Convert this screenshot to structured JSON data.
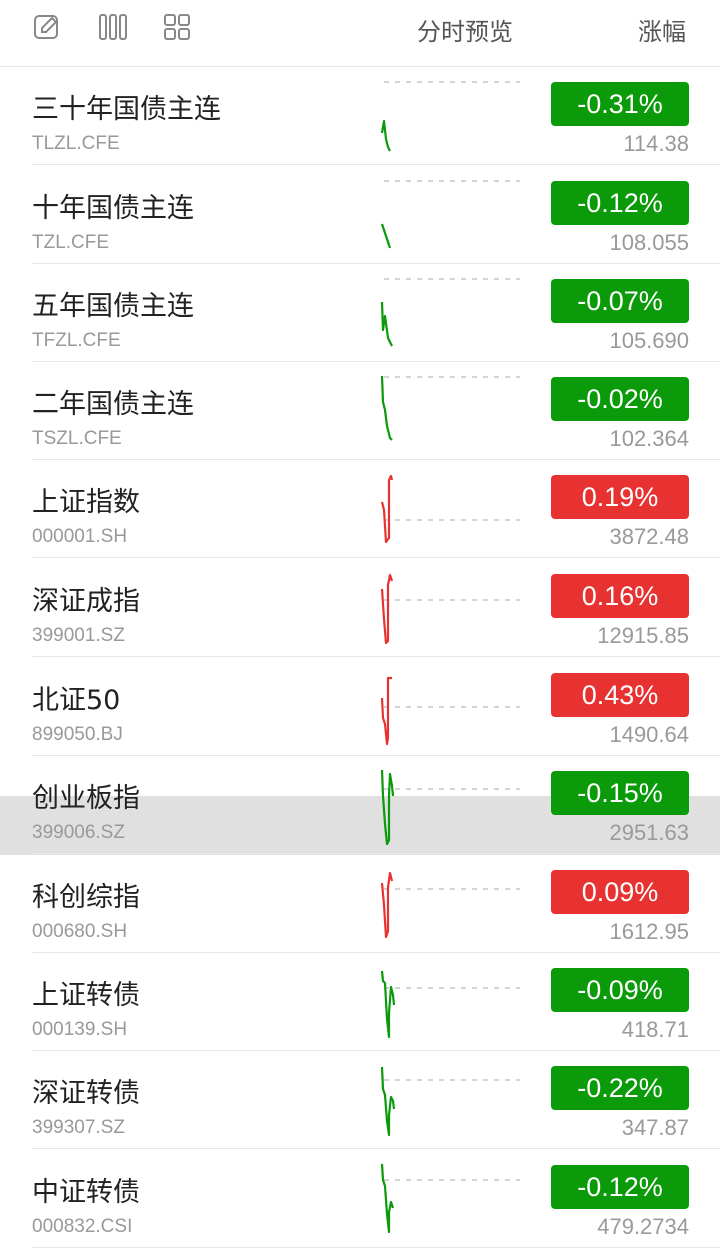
{
  "header": {
    "icons": [
      "edit-icon",
      "columns-icon",
      "grid-icon"
    ],
    "preview_label": "分时预览",
    "change_label": "涨幅"
  },
  "colors": {
    "up": "#e83232",
    "down": "#0a9a0a"
  },
  "rows": [
    {
      "name": "三十年国债主连",
      "code": "TLZL.CFE",
      "change": "-0.31%",
      "price": "114.38",
      "dir": "down"
    },
    {
      "name": "十年国债主连",
      "code": "TZL.CFE",
      "change": "-0.12%",
      "price": "108.055",
      "dir": "down"
    },
    {
      "name": "五年国债主连",
      "code": "TFZL.CFE",
      "change": "-0.07%",
      "price": "105.690",
      "dir": "down"
    },
    {
      "name": "二年国债主连",
      "code": "TSZL.CFE",
      "change": "-0.02%",
      "price": "102.364",
      "dir": "down"
    },
    {
      "name": "上证指数",
      "code": "000001.SH",
      "change": "0.19%",
      "price": "3872.48",
      "dir": "up"
    },
    {
      "name": "深证成指",
      "code": "399001.SZ",
      "change": "0.16%",
      "price": "12915.85",
      "dir": "up"
    },
    {
      "name": "北证50",
      "code": "899050.BJ",
      "change": "0.43%",
      "price": "1490.64",
      "dir": "up"
    },
    {
      "name": "创业板指",
      "code": "399006.SZ",
      "change": "-0.15%",
      "price": "2951.63",
      "dir": "down"
    },
    {
      "name": "科创综指",
      "code": "000680.SH",
      "change": "0.09%",
      "price": "1612.95",
      "dir": "up"
    },
    {
      "name": "上证转债",
      "code": "000139.SH",
      "change": "-0.09%",
      "price": "418.71",
      "dir": "down"
    },
    {
      "name": "深证转债",
      "code": "399307.SZ",
      "change": "-0.22%",
      "price": "347.87",
      "dir": "down"
    },
    {
      "name": "中证转债",
      "code": "000832.CSI",
      "change": "-0.12%",
      "price": "479.2734",
      "dir": "down"
    }
  ]
}
